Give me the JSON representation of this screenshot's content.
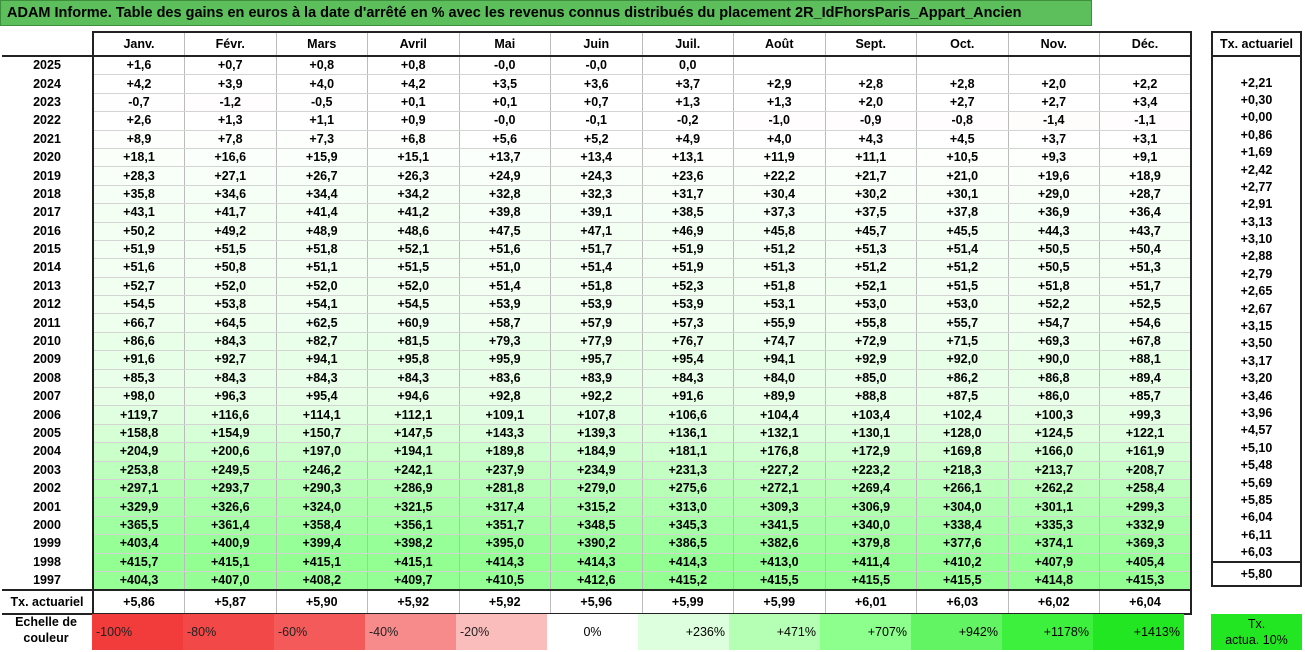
{
  "title": "ADAM Informe. Table des gains en euros à la date d'arrêté en % avec les revenus connus distribués du placement 2R_IdFhorsParis_Appart_Ancien",
  "months": [
    "Janv.",
    "Févr.",
    "Mars",
    "Avril",
    "Mai",
    "Juin",
    "Juil.",
    "Août",
    "Sept.",
    "Oct.",
    "Nov.",
    "Déc."
  ],
  "side_header": "Tx. actuariel",
  "rows": [
    {
      "year": "2025",
      "values": [
        "+1,6",
        "+0,7",
        "+0,8",
        "+0,8",
        "-0,0",
        "-0,0",
        "0,0",
        "",
        "",
        "",
        "",
        ""
      ],
      "tx": ""
    },
    {
      "year": "2024",
      "values": [
        "+4,2",
        "+3,9",
        "+4,0",
        "+4,2",
        "+3,5",
        "+3,6",
        "+3,7",
        "+2,9",
        "+2,8",
        "+2,8",
        "+2,0",
        "+2,2"
      ],
      "tx": "+2,21"
    },
    {
      "year": "2023",
      "values": [
        "-0,7",
        "-1,2",
        "-0,5",
        "+0,1",
        "+0,1",
        "+0,7",
        "+1,3",
        "+1,3",
        "+2,0",
        "+2,7",
        "+2,7",
        "+3,4"
      ],
      "tx": "+0,30"
    },
    {
      "year": "2022",
      "values": [
        "+2,6",
        "+1,3",
        "+1,1",
        "+0,9",
        "-0,0",
        "-0,1",
        "-0,2",
        "-1,0",
        "-0,9",
        "-0,8",
        "-1,4",
        "-1,1"
      ],
      "tx": "+0,00"
    },
    {
      "year": "2021",
      "values": [
        "+8,9",
        "+7,8",
        "+7,3",
        "+6,8",
        "+5,6",
        "+5,2",
        "+4,9",
        "+4,0",
        "+4,3",
        "+4,5",
        "+3,7",
        "+3,1"
      ],
      "tx": "+0,86"
    },
    {
      "year": "2020",
      "values": [
        "+18,1",
        "+16,6",
        "+15,9",
        "+15,1",
        "+13,7",
        "+13,4",
        "+13,1",
        "+11,9",
        "+11,1",
        "+10,5",
        "+9,3",
        "+9,1"
      ],
      "tx": "+1,69"
    },
    {
      "year": "2019",
      "values": [
        "+28,3",
        "+27,1",
        "+26,7",
        "+26,3",
        "+24,9",
        "+24,3",
        "+23,6",
        "+22,2",
        "+21,7",
        "+21,0",
        "+19,6",
        "+18,9"
      ],
      "tx": "+2,42"
    },
    {
      "year": "2018",
      "values": [
        "+35,8",
        "+34,6",
        "+34,4",
        "+34,2",
        "+32,8",
        "+32,3",
        "+31,7",
        "+30,4",
        "+30,2",
        "+30,1",
        "+29,0",
        "+28,7"
      ],
      "tx": "+2,77"
    },
    {
      "year": "2017",
      "values": [
        "+43,1",
        "+41,7",
        "+41,4",
        "+41,2",
        "+39,8",
        "+39,1",
        "+38,5",
        "+37,3",
        "+37,5",
        "+37,8",
        "+36,9",
        "+36,4"
      ],
      "tx": "+2,91"
    },
    {
      "year": "2016",
      "values": [
        "+50,2",
        "+49,2",
        "+48,9",
        "+48,6",
        "+47,5",
        "+47,1",
        "+46,9",
        "+45,8",
        "+45,7",
        "+45,5",
        "+44,3",
        "+43,7"
      ],
      "tx": "+3,13"
    },
    {
      "year": "2015",
      "values": [
        "+51,9",
        "+51,5",
        "+51,8",
        "+52,1",
        "+51,6",
        "+51,7",
        "+51,9",
        "+51,2",
        "+51,3",
        "+51,4",
        "+50,5",
        "+50,4"
      ],
      "tx": "+3,10"
    },
    {
      "year": "2014",
      "values": [
        "+51,6",
        "+50,8",
        "+51,1",
        "+51,5",
        "+51,0",
        "+51,4",
        "+51,9",
        "+51,3",
        "+51,2",
        "+51,2",
        "+50,5",
        "+51,3"
      ],
      "tx": "+2,88"
    },
    {
      "year": "2013",
      "values": [
        "+52,7",
        "+52,0",
        "+52,0",
        "+52,0",
        "+51,4",
        "+51,8",
        "+52,3",
        "+51,8",
        "+52,1",
        "+51,5",
        "+51,8",
        "+51,7"
      ],
      "tx": "+2,79"
    },
    {
      "year": "2012",
      "values": [
        "+54,5",
        "+53,8",
        "+54,1",
        "+54,5",
        "+53,9",
        "+53,9",
        "+53,9",
        "+53,1",
        "+53,0",
        "+53,0",
        "+52,2",
        "+52,5"
      ],
      "tx": "+2,65"
    },
    {
      "year": "2011",
      "values": [
        "+66,7",
        "+64,5",
        "+62,5",
        "+60,9",
        "+58,7",
        "+57,9",
        "+57,3",
        "+55,9",
        "+55,8",
        "+55,7",
        "+54,7",
        "+54,6"
      ],
      "tx": "+2,67"
    },
    {
      "year": "2010",
      "values": [
        "+86,6",
        "+84,3",
        "+82,7",
        "+81,5",
        "+79,3",
        "+77,9",
        "+76,7",
        "+74,7",
        "+72,9",
        "+71,5",
        "+69,3",
        "+67,8"
      ],
      "tx": "+3,15"
    },
    {
      "year": "2009",
      "values": [
        "+91,6",
        "+92,7",
        "+94,1",
        "+95,8",
        "+95,9",
        "+95,7",
        "+95,4",
        "+94,1",
        "+92,9",
        "+92,0",
        "+90,0",
        "+88,1"
      ],
      "tx": "+3,50"
    },
    {
      "year": "2008",
      "values": [
        "+85,3",
        "+84,3",
        "+84,3",
        "+84,3",
        "+83,6",
        "+83,9",
        "+84,3",
        "+84,0",
        "+85,0",
        "+86,2",
        "+86,8",
        "+89,4"
      ],
      "tx": "+3,17"
    },
    {
      "year": "2007",
      "values": [
        "+98,0",
        "+96,3",
        "+95,4",
        "+94,6",
        "+92,8",
        "+92,2",
        "+91,6",
        "+89,9",
        "+88,8",
        "+87,5",
        "+86,0",
        "+85,7"
      ],
      "tx": "+3,20"
    },
    {
      "year": "2006",
      "values": [
        "+119,7",
        "+116,6",
        "+114,1",
        "+112,1",
        "+109,1",
        "+107,8",
        "+106,6",
        "+104,4",
        "+103,4",
        "+102,4",
        "+100,3",
        "+99,3"
      ],
      "tx": "+3,46"
    },
    {
      "year": "2005",
      "values": [
        "+158,8",
        "+154,9",
        "+150,7",
        "+147,5",
        "+143,3",
        "+139,3",
        "+136,1",
        "+132,1",
        "+130,1",
        "+128,0",
        "+124,5",
        "+122,1"
      ],
      "tx": "+3,96"
    },
    {
      "year": "2004",
      "values": [
        "+204,9",
        "+200,6",
        "+197,0",
        "+194,1",
        "+189,8",
        "+184,9",
        "+181,1",
        "+176,8",
        "+172,9",
        "+169,8",
        "+166,0",
        "+161,9"
      ],
      "tx": "+4,57"
    },
    {
      "year": "2003",
      "values": [
        "+253,8",
        "+249,5",
        "+246,2",
        "+242,1",
        "+237,9",
        "+234,9",
        "+231,3",
        "+227,2",
        "+223,2",
        "+218,3",
        "+213,7",
        "+208,7"
      ],
      "tx": "+5,10"
    },
    {
      "year": "2002",
      "values": [
        "+297,1",
        "+293,7",
        "+290,3",
        "+286,9",
        "+281,8",
        "+279,0",
        "+275,6",
        "+272,1",
        "+269,4",
        "+266,1",
        "+262,2",
        "+258,4"
      ],
      "tx": "+5,48"
    },
    {
      "year": "2001",
      "values": [
        "+329,9",
        "+326,6",
        "+324,0",
        "+321,5",
        "+317,4",
        "+315,2",
        "+313,0",
        "+309,3",
        "+306,9",
        "+304,0",
        "+301,1",
        "+299,3"
      ],
      "tx": "+5,69"
    },
    {
      "year": "2000",
      "values": [
        "+365,5",
        "+361,4",
        "+358,4",
        "+356,1",
        "+351,7",
        "+348,5",
        "+345,3",
        "+341,5",
        "+340,0",
        "+338,4",
        "+335,3",
        "+332,9"
      ],
      "tx": "+5,85"
    },
    {
      "year": "1999",
      "values": [
        "+403,4",
        "+400,9",
        "+399,4",
        "+398,2",
        "+395,0",
        "+390,2",
        "+386,5",
        "+382,6",
        "+379,8",
        "+377,6",
        "+374,1",
        "+369,3"
      ],
      "tx": "+6,04"
    },
    {
      "year": "1998",
      "values": [
        "+415,7",
        "+415,1",
        "+415,1",
        "+415,1",
        "+414,3",
        "+414,3",
        "+414,3",
        "+413,0",
        "+411,4",
        "+410,2",
        "+407,9",
        "+405,4"
      ],
      "tx": "+6,11"
    },
    {
      "year": "1997",
      "values": [
        "+404,3",
        "+407,0",
        "+408,2",
        "+409,7",
        "+410,5",
        "+412,6",
        "+415,2",
        "+415,5",
        "+415,5",
        "+415,5",
        "+414,8",
        "+415,3"
      ],
      "tx": "+6,03"
    }
  ],
  "footer": {
    "label": "Tx. actuariel",
    "values": [
      "+5,86",
      "+5,87",
      "+5,90",
      "+5,92",
      "+5,92",
      "+5,96",
      "+5,99",
      "+5,99",
      "+6,01",
      "+6,03",
      "+6,02",
      "+6,04"
    ],
    "tx": "+5,80"
  },
  "scale": {
    "label_line1": "Echelle de",
    "label_line2": "couleur",
    "cells": [
      {
        "text": "-100%",
        "color": "#f23b3b",
        "kind": "neg"
      },
      {
        "text": "-80%",
        "color": "#f24848",
        "kind": "neg"
      },
      {
        "text": "-60%",
        "color": "#f45a5a",
        "kind": "neg"
      },
      {
        "text": "-40%",
        "color": "#f78a8a",
        "kind": "neg"
      },
      {
        "text": "-20%",
        "color": "#fbbcbc",
        "kind": "neg"
      },
      {
        "text": "0%",
        "color": "#ffffff",
        "kind": "zero"
      },
      {
        "text": "+236%",
        "color": "#ddffdd",
        "kind": "pos"
      },
      {
        "text": "+471%",
        "color": "#b5ffb5",
        "kind": "pos"
      },
      {
        "text": "+707%",
        "color": "#8cff8c",
        "kind": "pos"
      },
      {
        "text": "+942%",
        "color": "#63f463",
        "kind": "pos"
      },
      {
        "text": "+1178%",
        "color": "#3ef03e",
        "kind": "pos"
      },
      {
        "text": "+1413%",
        "color": "#22e622",
        "kind": "pos"
      }
    ],
    "tx_line1": "Tx.",
    "tx_line2": "actua. 10%",
    "tx_color": "#22e622"
  },
  "colors": {
    "title_bg": "#5cbf5c"
  }
}
